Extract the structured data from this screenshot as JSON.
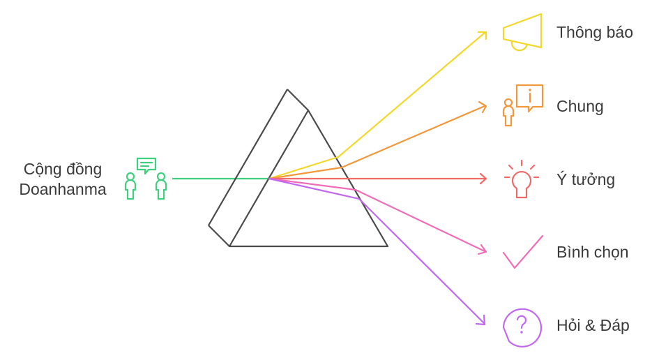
{
  "source": {
    "label_line1": "Cộng đồng",
    "label_line2": "Doanhanma",
    "color": "#3fcf7f",
    "icon": "community-chat-icon"
  },
  "prism": {
    "color": "#4a4a4a"
  },
  "outputs": [
    {
      "label": "Thông báo",
      "color": "#f2d82a",
      "icon": "megaphone-icon"
    },
    {
      "label": "Chung",
      "color": "#f2973a",
      "icon": "person-info-icon"
    },
    {
      "label": "Ý tưởng",
      "color": "#f06a6a",
      "icon": "lightbulb-icon"
    },
    {
      "label": "Bình chọn",
      "color": "#f06cb8",
      "icon": "checkmark-icon"
    },
    {
      "label": "Hỏi & Đáp",
      "color": "#c068f0",
      "icon": "question-bubble-icon"
    }
  ]
}
